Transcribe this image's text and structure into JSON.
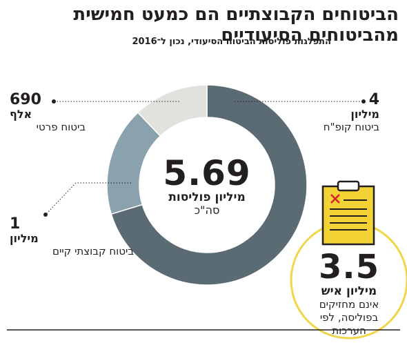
{
  "header": {
    "title": "הביטוחים הקבוצתיים הם כמעט חמישית מהביטוחים הסיעודיים",
    "subtitle": "התפלגות פוליסות הביטוח הסיעודי, נכון ל־2016"
  },
  "center": {
    "value": "5.69",
    "unit": "מיליון פוליסות",
    "desc": "סה\"כ"
  },
  "labels": {
    "kupah": {
      "value": "4",
      "unit": "מיליון",
      "desc": "ביטוח קופ\"ח"
    },
    "private": {
      "value": "690",
      "unit": "אלף",
      "desc": "ביטוח פרטי"
    },
    "group": {
      "value": "1",
      "unit": "מיליון",
      "desc": "ביטוח קבוצתי קיים"
    }
  },
  "callout": {
    "value": "3.5",
    "unit": "מיליון איש",
    "desc_line1": "אינם מחזיקים",
    "desc_line2": "בפוליסה, לפי",
    "desc_line3": "הערכות",
    "icon": "clipboard-icon"
  },
  "colors": {
    "kupah": "#5b6b74",
    "group": "#8aa1ae",
    "private": "#e1e2de",
    "callout_ring": "#f0d64b",
    "icon_paper": "#f2d235"
  },
  "chart_data": {
    "type": "pie",
    "style": "donut",
    "title": "הביטוחים הקבוצתיים הם כמעט חמישית מהביטוחים הסיעודיים",
    "subtitle": "התפלגות פוליסות הביטוח הסיעודי, נכון ל־2016",
    "total": 5.69,
    "total_unit": "מיליון פוליסות",
    "slices": [
      {
        "name": "ביטוח קופ\"ח",
        "value": 4,
        "unit": "מיליון"
      },
      {
        "name": "ביטוח קבוצתי קיים",
        "value": 1,
        "unit": "מיליון"
      },
      {
        "name": "ביטוח פרטי",
        "value": 0.69,
        "unit": "אלף 690"
      }
    ]
  }
}
